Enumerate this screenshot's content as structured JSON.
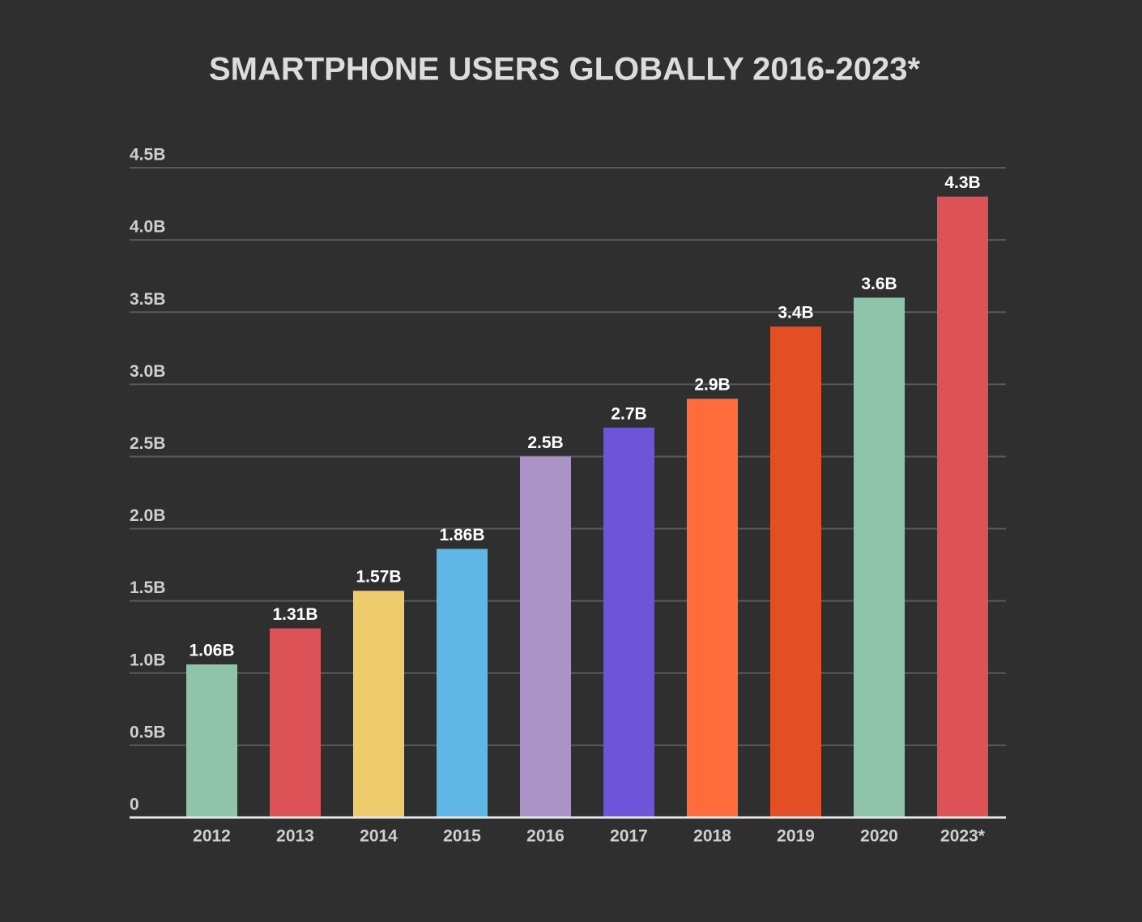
{
  "chart_data": {
    "type": "bar",
    "title": "SMARTPHONE USERS GLOBALLY 2016-2023*",
    "categories": [
      "2012",
      "2013",
      "2014",
      "2015",
      "2016",
      "2017",
      "2018",
      "2019",
      "2020",
      "2023*"
    ],
    "values": [
      1.06,
      1.31,
      1.57,
      1.86,
      2.5,
      2.7,
      2.9,
      3.4,
      3.6,
      4.3
    ],
    "value_labels": [
      "1.06B",
      "1.31B",
      "1.57B",
      "1.86B",
      "2.5B",
      "2.7B",
      "2.9B",
      "3.4B",
      "3.6B",
      "4.3B"
    ],
    "colors": [
      "#8fc4aa",
      "#dc5257",
      "#eecb6b",
      "#5fb7e5",
      "#ab93c7",
      "#6e54d9",
      "#ff6b3b",
      "#e34e25",
      "#8fc4aa",
      "#dc5257"
    ],
    "ylim": [
      0,
      4.5
    ],
    "yticks": [
      0,
      {
        "value": 0.5,
        "label": "0.5B"
      },
      {
        "value": 1.0,
        "label": "1.0B"
      },
      {
        "value": 1.5,
        "label": "1.5B"
      },
      {
        "value": 2.0,
        "label": "2.0B"
      },
      {
        "value": 2.5,
        "label": "2.5B"
      },
      {
        "value": 3.0,
        "label": "3.0B"
      },
      {
        "value": 3.5,
        "label": "3.5B"
      },
      {
        "value": 4.0,
        "label": "4.0B"
      },
      {
        "value": 4.5,
        "label": "4.5B"
      }
    ],
    "grid": true
  }
}
